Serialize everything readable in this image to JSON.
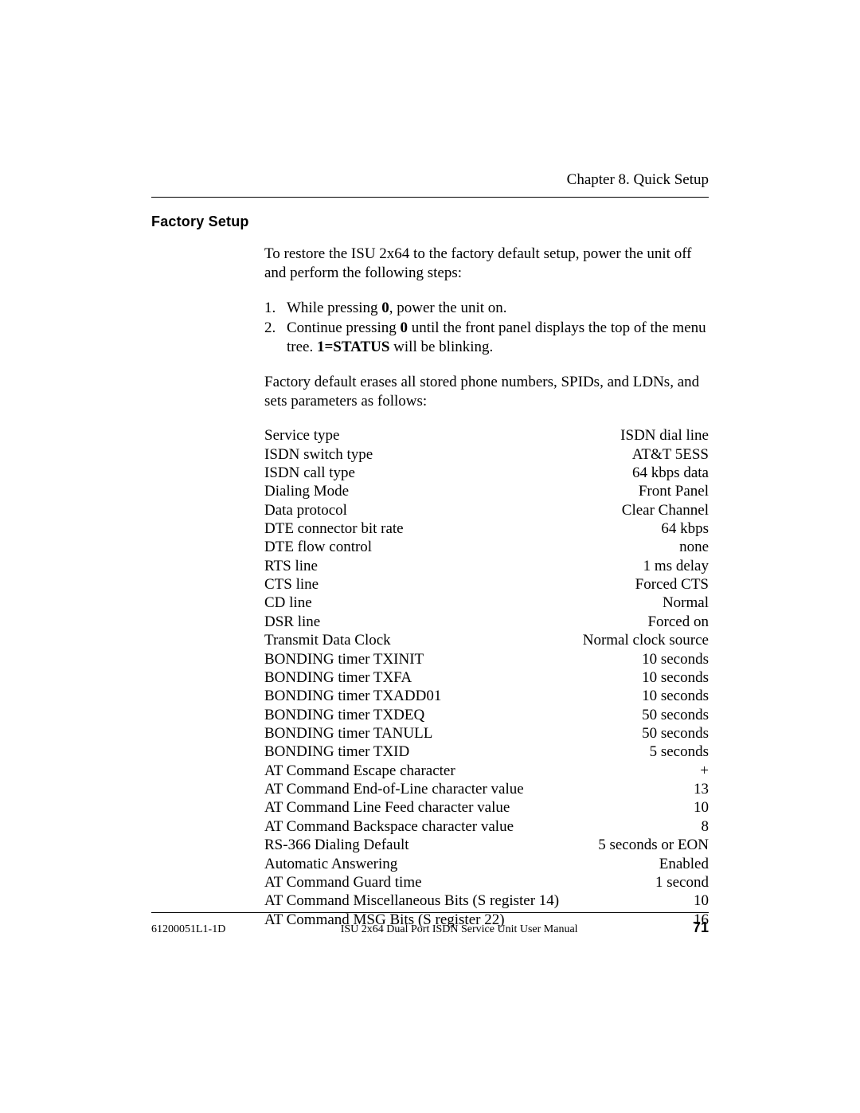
{
  "header": {
    "chapter": "Chapter 8. Quick Setup"
  },
  "section": {
    "title": "Factory Setup",
    "intro": "To restore the ISU 2x64 to the factory default setup, power the unit off and perform the following steps:",
    "steps": [
      {
        "num": "1.",
        "prefix": "While pressing ",
        "bold1": "0",
        "suffix": ", power the unit on."
      },
      {
        "num": "2.",
        "prefix": "Continue pressing ",
        "bold1": "0",
        "mid": " until the front panel displays the top of the menu tree.  ",
        "bold2": "1=STATUS",
        "suffix": " will be blinking."
      }
    ],
    "outro": "Factory default erases all stored phone numbers, SPIDs, and LDNs, and sets parameters as follows:"
  },
  "params": [
    {
      "label": "Service type",
      "value": "ISDN dial line"
    },
    {
      "label": "ISDN switch type",
      "value": "AT&T 5ESS"
    },
    {
      "label": "ISDN call type",
      "value": "64 kbps data"
    },
    {
      "label": "Dialing Mode",
      "value": "Front Panel"
    },
    {
      "label": "Data protocol",
      "value": "Clear Channel"
    },
    {
      "label": "DTE connector bit rate",
      "value": "64 kbps"
    },
    {
      "label": "DTE flow control",
      "value": " none"
    },
    {
      "label": "RTS line",
      "value": "1 ms delay"
    },
    {
      "label": "CTS line",
      "value": "Forced CTS"
    },
    {
      "label": "CD line",
      "value": "Normal"
    },
    {
      "label": "DSR line",
      "value": "Forced on"
    },
    {
      "label": "Transmit Data Clock",
      "value": "Normal clock source"
    },
    {
      "label": "BONDING timer TXINIT",
      "value": " 10 seconds"
    },
    {
      "label": "BONDING timer TXFA",
      "value": " 10 seconds"
    },
    {
      "label": "BONDING timer TXADD01",
      "value": " 10 seconds"
    },
    {
      "label": "BONDING timer TXDEQ",
      "value": " 50 seconds"
    },
    {
      "label": "BONDING timer TANULL",
      "value": " 50 seconds"
    },
    {
      "label": "BONDING timer TXID",
      "value": " 5 seconds"
    },
    {
      "label": "AT Command Escape character",
      "value": "+"
    },
    {
      "label": "AT Command End-of-Line character value",
      "value": " 13"
    },
    {
      "label": "AT Command Line Feed character value",
      "value": " 10"
    },
    {
      "label": "AT Command Backspace character value",
      "value": " 8"
    },
    {
      "label": "RS-366 Dialing Default",
      "value": "5 seconds or EON"
    },
    {
      "label": "Automatic Answering",
      "value": "Enabled"
    },
    {
      "label": "AT Command Guard time",
      "value": "1 second"
    },
    {
      "label": "AT Command Miscellaneous Bits (S register 14)",
      "value": " 10"
    },
    {
      "label": "AT Command MSG Bits (S register 22)",
      "value": " 16"
    }
  ],
  "footer": {
    "doc_code": "61200051L1-1D",
    "center": "ISU 2x64 Dual Port ISDN Service Unit User Manual",
    "page": "71"
  }
}
